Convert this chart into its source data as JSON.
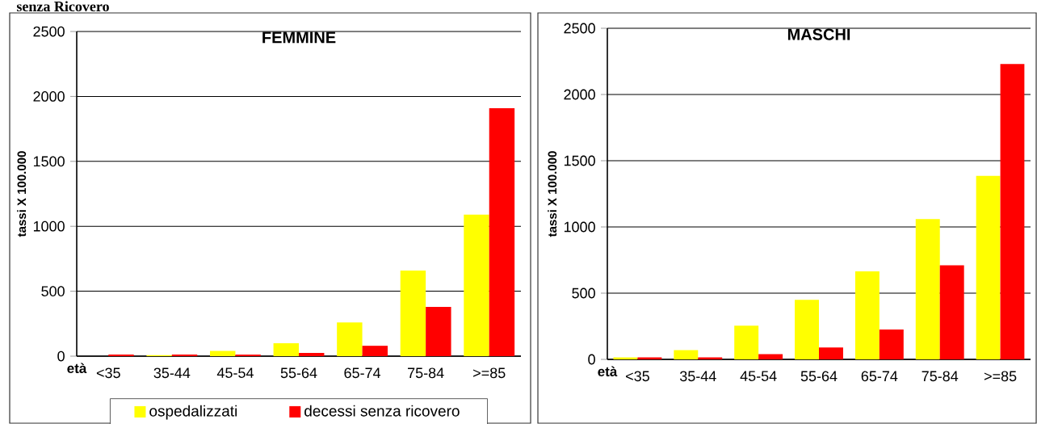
{
  "chart_data": [
    {
      "type": "bar",
      "title": "FEMMINE",
      "xlabel": "età",
      "ylabel": "tassi X 100.000",
      "annotations": [
        "senza Ricovero"
      ],
      "categories": [
        "<35",
        "35-44",
        "45-54",
        "55-64",
        "65-74",
        "75-84",
        ">=85"
      ],
      "series": [
        {
          "name": "ospedalizzati",
          "color": "#ffff00",
          "values": [
            null,
            8,
            40,
            100,
            260,
            660,
            1090
          ]
        },
        {
          "name": "decessi senza ricovero",
          "color": "#ff0000",
          "values": [
            12,
            12,
            12,
            25,
            80,
            380,
            1910
          ]
        }
      ],
      "ylim": [
        0,
        2500
      ],
      "yticks": [
        0,
        500,
        1000,
        1500,
        2000,
        2500
      ],
      "grid": "y",
      "legend": "bottom"
    },
    {
      "type": "bar",
      "title": "MASCHI",
      "xlabel": "età",
      "ylabel": "tassi X 100.000",
      "categories": [
        "<35",
        "35-44",
        "45-54",
        "55-64",
        "65-74",
        "75-84",
        ">=85"
      ],
      "series": [
        {
          "color": "#ffff00",
          "values": [
            15,
            70,
            255,
            450,
            665,
            1060,
            1385
          ]
        },
        {
          "color": "#ff0000",
          "values": [
            15,
            15,
            40,
            90,
            225,
            710,
            2230
          ]
        }
      ],
      "ylim": [
        0,
        2500
      ],
      "yticks": [
        0,
        500,
        1000,
        1500,
        2000,
        2500
      ],
      "grid": "y"
    }
  ]
}
